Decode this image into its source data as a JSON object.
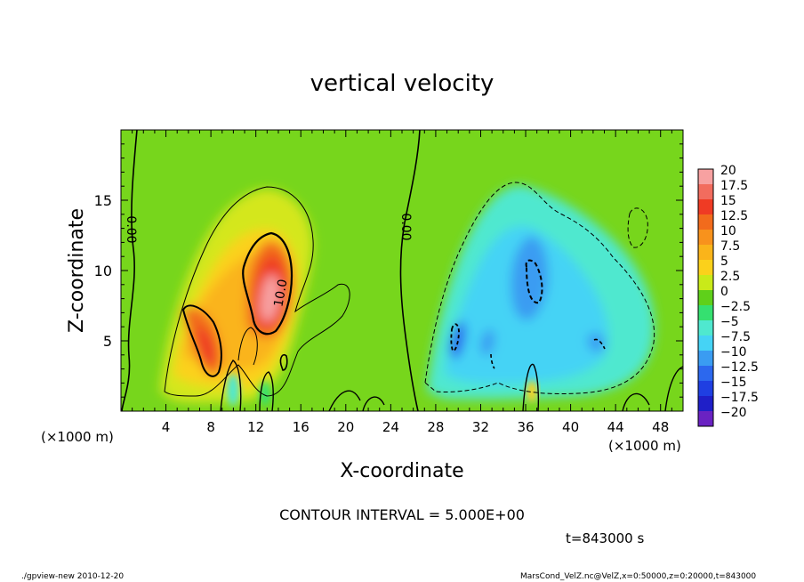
{
  "chart_data": {
    "type": "heatmap",
    "title": "vertical velocity",
    "xlabel": "X-coordinate",
    "ylabel": "Z-coordinate",
    "x_unit_label": "(×1000 m)",
    "y_unit_label": "(×1000 m)",
    "xlim": [
      0,
      50
    ],
    "ylim": [
      0,
      20
    ],
    "x_ticks": [
      "4",
      "8",
      "12",
      "16",
      "20",
      "24",
      "28",
      "32",
      "36",
      "40",
      "44",
      "48"
    ],
    "y_ticks": [
      "5",
      "10",
      "15"
    ],
    "colorbar": {
      "labels": [
        "20",
        "17.5",
        "15",
        "12.5",
        "10",
        "7.5",
        "5",
        "2.5",
        "0",
        "−2.5",
        "−5",
        "−7.5",
        "−10",
        "−12.5",
        "−15",
        "−17.5",
        "−20"
      ],
      "colors": [
        "#f7a1a1",
        "#f26c5e",
        "#ef3b24",
        "#f26b1c",
        "#f8921c",
        "#fab41a",
        "#fbd11b",
        "#c9ea19",
        "#5fd01a",
        "#35e070",
        "#4fe8cf",
        "#45d3f5",
        "#3a9cf2",
        "#2c68ee",
        "#1f3fe2",
        "#1f1fc8",
        "#6a22c2"
      ]
    },
    "contour_labels": [
      "0.00",
      "0.00",
      "10.0"
    ],
    "contour_interval_text": "CONTOUR INTERVAL = 5.000E+00",
    "time_text": "t=843000 s",
    "features": [
      {
        "kind": "updraft",
        "x": 13,
        "z": 9,
        "value": 17
      },
      {
        "kind": "updraft",
        "x": 8,
        "z": 6,
        "value": 12
      },
      {
        "kind": "downdraft",
        "x": 36,
        "z": 9.5,
        "value": -11
      },
      {
        "kind": "downdraft",
        "x": 30,
        "z": 5,
        "value": -10
      }
    ]
  },
  "footer": {
    "left": "./gpview-new  2010-12-20",
    "right": "MarsCond_VelZ.nc@VelZ,x=0:50000,z=0:20000,t=843000"
  }
}
